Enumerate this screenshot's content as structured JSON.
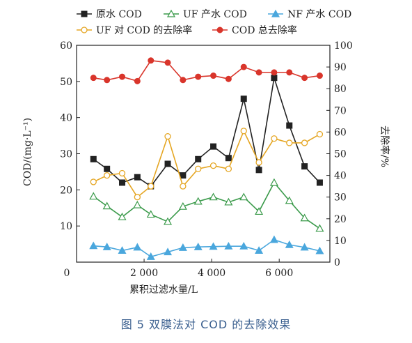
{
  "caption": "图 5  双膜法对 COD 的去除效果",
  "chart_data": {
    "type": "line",
    "xlabel": "累积过滤水量/L",
    "ylabel": "COD/(mg·L⁻¹)",
    "y2label": "去除率/%",
    "xlim": [
      0,
      7500
    ],
    "ylim": [
      0,
      60
    ],
    "y2lim": [
      0,
      100
    ],
    "x_ticks": [
      2000,
      4000,
      6000
    ],
    "x_tick_labels": [
      "2 000",
      "4 000",
      "6 000"
    ],
    "y_ticks": [
      10,
      20,
      30,
      40,
      50,
      60
    ],
    "y2_ticks": [
      0,
      10,
      20,
      30,
      40,
      50,
      60,
      70,
      80,
      90,
      100
    ],
    "origin_label": "0",
    "legend_placement": "top",
    "x": [
      500,
      900,
      1350,
      1800,
      2200,
      2700,
      3150,
      3600,
      4050,
      4500,
      4950,
      5400,
      5850,
      6300,
      6750,
      7200
    ],
    "series": [
      {
        "name": "原水 COD",
        "axis": "left",
        "marker": "square",
        "color": "#222222",
        "values": [
          28.5,
          25.8,
          22.0,
          23.5,
          21.0,
          27.2,
          24.0,
          28.5,
          32.0,
          28.8,
          45.2,
          25.5,
          51.0,
          37.8,
          26.5,
          22.0
        ]
      },
      {
        "name": "UF 产水 COD",
        "axis": "left",
        "marker": "triangle-open",
        "color": "#3a9a4a",
        "values": [
          18.2,
          15.5,
          12.5,
          15.8,
          13.2,
          11.2,
          15.4,
          16.8,
          18.0,
          16.6,
          18.0,
          14.0,
          22.0,
          17.0,
          12.2,
          9.3
        ]
      },
      {
        "name": "NF 产水 COD",
        "axis": "left",
        "marker": "triangle-filled",
        "color": "#4aa7dd",
        "values": [
          4.5,
          4.2,
          3.2,
          4.1,
          1.5,
          2.8,
          4.0,
          4.2,
          4.3,
          4.4,
          4.4,
          3.2,
          6.2,
          4.8,
          4.1,
          3.1
        ]
      },
      {
        "name": "UF 对 COD 的去除率",
        "axis": "right",
        "marker": "circle-open",
        "color": "#e5a623",
        "values": [
          37,
          40,
          41,
          30,
          35,
          58,
          35,
          43,
          44.5,
          43,
          60.5,
          46,
          57,
          55,
          55,
          59
        ]
      },
      {
        "name": "COD 总去除率",
        "axis": "right",
        "marker": "circle-filled",
        "color": "#d9352b",
        "values": [
          85,
          84,
          85.5,
          83.5,
          93,
          92,
          84,
          85.5,
          86,
          84.5,
          90,
          87.5,
          87.5,
          87.5,
          85,
          86
        ]
      }
    ]
  }
}
